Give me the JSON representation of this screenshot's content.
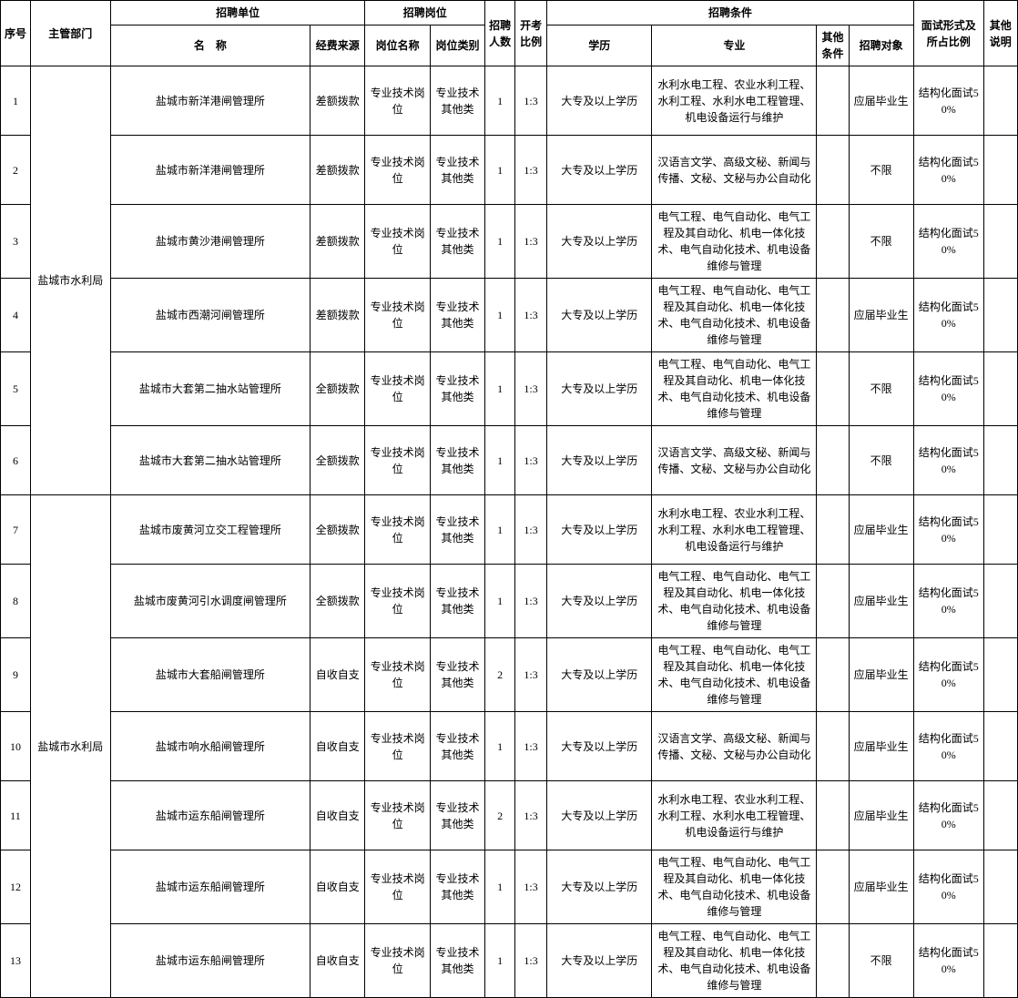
{
  "headers": {
    "seq": "序号",
    "dept": "主管部门",
    "unit_group": "招聘单位",
    "unit_name": "名　称",
    "fund": "经费来源",
    "pos_group": "招聘岗位",
    "pos_name": "岗位名称",
    "pos_type": "岗位类别",
    "num": "招聘人数",
    "ratio": "开考比例",
    "cond_group": "招聘条件",
    "edu": "学历",
    "major": "专业",
    "other": "其他条件",
    "target": "招聘对象",
    "interview": "面试形式及所占比例",
    "note": "其他说明"
  },
  "dept1": "盐城市水利局",
  "dept2": "盐城市水利局",
  "rows": [
    {
      "seq": "1",
      "unit": "盐城市新洋港闸管理所",
      "fund": "差额拨款",
      "pos": "专业技术岗位",
      "ptype": "专业技术其他类",
      "num": "1",
      "ratio": "1:3",
      "edu": "大专及以上学历",
      "major": "水利水电工程、农业水利工程、水利工程、水利水电工程管理、机电设备运行与维护",
      "other": "",
      "target": "应届毕业生",
      "inter": "结构化面试50%",
      "note": ""
    },
    {
      "seq": "2",
      "unit": "盐城市新洋港闸管理所",
      "fund": "差额拨款",
      "pos": "专业技术岗位",
      "ptype": "专业技术其他类",
      "num": "1",
      "ratio": "1:3",
      "edu": "大专及以上学历",
      "major": "汉语言文学、高级文秘、新闻与传播、文秘、文秘与办公自动化",
      "other": "",
      "target": "不限",
      "inter": "结构化面试50%",
      "note": ""
    },
    {
      "seq": "3",
      "unit": "盐城市黄沙港闸管理所",
      "fund": "差额拨款",
      "pos": "专业技术岗位",
      "ptype": "专业技术其他类",
      "num": "1",
      "ratio": "1:3",
      "edu": "大专及以上学历",
      "major": "电气工程、电气自动化、电气工程及其自动化、机电一体化技术、电气自动化技术、机电设备维修与管理",
      "other": "",
      "target": "不限",
      "inter": "结构化面试50%",
      "note": ""
    },
    {
      "seq": "4",
      "unit": "盐城市西潮河闸管理所",
      "fund": "差额拨款",
      "pos": "专业技术岗位",
      "ptype": "专业技术其他类",
      "num": "1",
      "ratio": "1:3",
      "edu": "大专及以上学历",
      "major": "电气工程、电气自动化、电气工程及其自动化、机电一体化技术、电气自动化技术、机电设备维修与管理",
      "other": "",
      "target": "应届毕业生",
      "inter": "结构化面试50%",
      "note": ""
    },
    {
      "seq": "5",
      "unit": "盐城市大套第二抽水站管理所",
      "fund": "全额拨款",
      "pos": "专业技术岗位",
      "ptype": "专业技术其他类",
      "num": "1",
      "ratio": "1:3",
      "edu": "大专及以上学历",
      "major": "电气工程、电气自动化、电气工程及其自动化、机电一体化技术、电气自动化技术、机电设备维修与管理",
      "other": "",
      "target": "不限",
      "inter": "结构化面试50%",
      "note": ""
    },
    {
      "seq": "6",
      "unit": "盐城市大套第二抽水站管理所",
      "fund": "全额拨款",
      "pos": "专业技术岗位",
      "ptype": "专业技术其他类",
      "num": "1",
      "ratio": "1:3",
      "edu": "大专及以上学历",
      "major": "汉语言文学、高级文秘、新闻与传播、文秘、文秘与办公自动化",
      "other": "",
      "target": "不限",
      "inter": "结构化面试50%",
      "note": ""
    },
    {
      "seq": "7",
      "unit": "盐城市废黄河立交工程管理所",
      "fund": "全额拨款",
      "pos": "专业技术岗位",
      "ptype": "专业技术其他类",
      "num": "1",
      "ratio": "1:3",
      "edu": "大专及以上学历",
      "major": "水利水电工程、农业水利工程、水利工程、水利水电工程管理、机电设备运行与维护",
      "other": "",
      "target": "应届毕业生",
      "inter": "结构化面试50%",
      "note": ""
    },
    {
      "seq": "8",
      "unit": "盐城市废黄河引水调度闸管理所",
      "fund": "全额拨款",
      "pos": "专业技术岗位",
      "ptype": "专业技术其他类",
      "num": "1",
      "ratio": "1:3",
      "edu": "大专及以上学历",
      "major": "电气工程、电气自动化、电气工程及其自动化、机电一体化技术、电气自动化技术、机电设备维修与管理",
      "other": "",
      "target": "应届毕业生",
      "inter": "结构化面试50%",
      "note": ""
    },
    {
      "seq": "9",
      "unit": "盐城市大套船闸管理所",
      "fund": "自收自支",
      "pos": "专业技术岗位",
      "ptype": "专业技术其他类",
      "num": "2",
      "ratio": "1:3",
      "edu": "大专及以上学历",
      "major": "电气工程、电气自动化、电气工程及其自动化、机电一体化技术、电气自动化技术、机电设备维修与管理",
      "other": "",
      "target": "应届毕业生",
      "inter": "结构化面试50%",
      "note": ""
    },
    {
      "seq": "10",
      "unit": "盐城市响水船闸管理所",
      "fund": "自收自支",
      "pos": "专业技术岗位",
      "ptype": "专业技术其他类",
      "num": "1",
      "ratio": "1:3",
      "edu": "大专及以上学历",
      "major": "汉语言文学、高级文秘、新闻与传播、文秘、文秘与办公自动化",
      "other": "",
      "target": "应届毕业生",
      "inter": "结构化面试50%",
      "note": ""
    },
    {
      "seq": "11",
      "unit": "盐城市运东船闸管理所",
      "fund": "自收自支",
      "pos": "专业技术岗位",
      "ptype": "专业技术其他类",
      "num": "2",
      "ratio": "1:3",
      "edu": "大专及以上学历",
      "major": "水利水电工程、农业水利工程、水利工程、水利水电工程管理、机电设备运行与维护",
      "other": "",
      "target": "应届毕业生",
      "inter": "结构化面试50%",
      "note": ""
    },
    {
      "seq": "12",
      "unit": "盐城市运东船闸管理所",
      "fund": "自收自支",
      "pos": "专业技术岗位",
      "ptype": "专业技术其他类",
      "num": "1",
      "ratio": "1:3",
      "edu": "大专及以上学历",
      "major": "电气工程、电气自动化、电气工程及其自动化、机电一体化技术、电气自动化技术、机电设备维修与管理",
      "other": "",
      "target": "应届毕业生",
      "inter": "结构化面试50%",
      "note": ""
    },
    {
      "seq": "13",
      "unit": "盐城市运东船闸管理所",
      "fund": "自收自支",
      "pos": "专业技术岗位",
      "ptype": "专业技术其他类",
      "num": "1",
      "ratio": "1:3",
      "edu": "大专及以上学历",
      "major": "电气工程、电气自动化、电气工程及其自动化、机电一体化技术、电气自动化技术、机电设备维修与管理",
      "other": "",
      "target": "不限",
      "inter": "结构化面试50%",
      "note": ""
    }
  ]
}
